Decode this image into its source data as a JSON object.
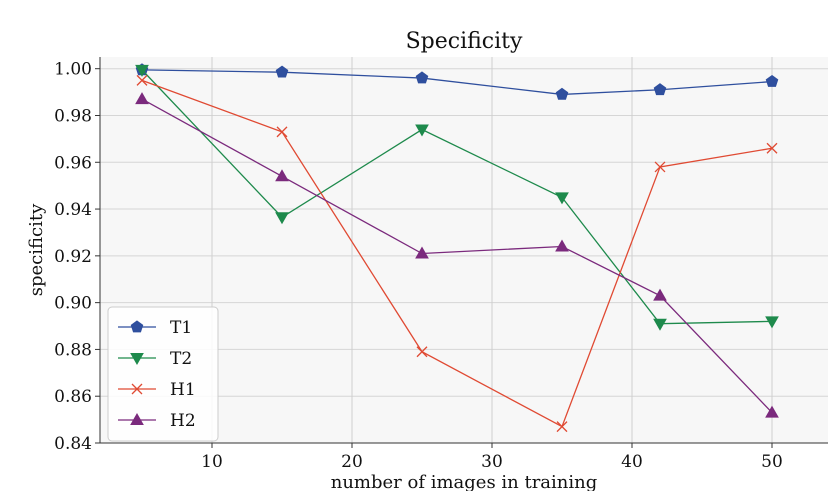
{
  "chart_data": {
    "type": "line",
    "title": "Specificity",
    "xlabel": "number of images in training",
    "ylabel": "specificity",
    "x": [
      5,
      15,
      25,
      35,
      42,
      50
    ],
    "xlim": [
      2,
      54
    ],
    "ylim": [
      0.84,
      1.005
    ],
    "xticks": [
      10,
      20,
      30,
      40,
      50
    ],
    "yticks": [
      0.84,
      0.86,
      0.88,
      0.9,
      0.92,
      0.94,
      0.96,
      0.98,
      1.0
    ],
    "xtick_labels": [
      "10",
      "20",
      "30",
      "40",
      "50"
    ],
    "ytick_labels": [
      "0.84",
      "0.86",
      "0.88",
      "0.90",
      "0.92",
      "0.94",
      "0.96",
      "0.98",
      "1.00"
    ],
    "grid": true,
    "legend_position": "bottom-left",
    "series": [
      {
        "name": "T1",
        "color": "#2f4f9e",
        "marker": "pentagon",
        "values": [
          0.9995,
          0.9985,
          0.996,
          0.989,
          0.991,
          0.9945
        ]
      },
      {
        "name": "T2",
        "color": "#1e8a4c",
        "marker": "triangle-down",
        "values": [
          0.9995,
          0.9365,
          0.974,
          0.945,
          0.891,
          0.892
        ]
      },
      {
        "name": "H1",
        "color": "#e04a33",
        "marker": "x",
        "values": [
          0.995,
          0.973,
          0.879,
          0.847,
          0.958,
          0.966
        ]
      },
      {
        "name": "H2",
        "color": "#7b2a7d",
        "marker": "triangle-up",
        "values": [
          0.987,
          0.954,
          0.921,
          0.924,
          0.903,
          0.853
        ]
      }
    ]
  }
}
